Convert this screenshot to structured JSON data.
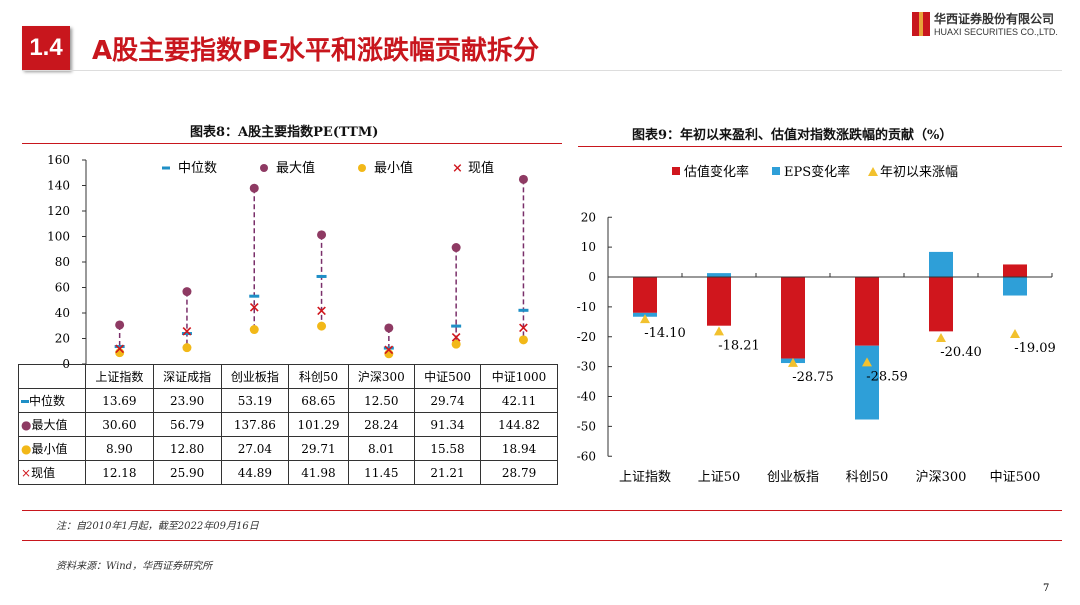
{
  "header": {
    "section": "1.4",
    "title": "A股主要指数PE水平和涨跌幅贡献拆分",
    "logo_cn": "华西证券股份有限公司",
    "logo_en": "HUAXI SECURITIES CO.,LTD."
  },
  "chart_data": [
    {
      "type": "scatter",
      "title": "图表8：A股主要指数PE(TTM)",
      "ylim": [
        0,
        160
      ],
      "yticks": [
        0,
        20,
        40,
        60,
        80,
        100,
        120,
        140,
        160
      ],
      "categories": [
        "上证指数",
        "深证成指",
        "创业板指",
        "科创50",
        "沪深300",
        "中证500",
        "中证1000"
      ],
      "series": [
        {
          "name": "中位数",
          "marker": "dash",
          "color": "#1f8fc6",
          "values": [
            13.69,
            23.9,
            53.19,
            68.65,
            12.5,
            29.74,
            42.11
          ]
        },
        {
          "name": "最大值",
          "marker": "circle",
          "color": "#8e3a63",
          "values": [
            30.6,
            56.79,
            137.86,
            101.29,
            28.24,
            91.34,
            144.82
          ]
        },
        {
          "name": "最小值",
          "marker": "circle",
          "color": "#f2b818",
          "values": [
            8.9,
            12.8,
            27.04,
            29.71,
            8.01,
            15.58,
            18.94
          ]
        },
        {
          "name": "现值",
          "marker": "x",
          "color": "#d0161d",
          "values": [
            12.18,
            25.9,
            44.89,
            41.98,
            11.45,
            21.21,
            28.79
          ]
        }
      ],
      "table_rows": [
        {
          "label": "中位数",
          "cells": [
            "13.69",
            "23.90",
            "53.19",
            "68.65",
            "12.50",
            "29.74",
            "42.11"
          ]
        },
        {
          "label": "最大值",
          "cells": [
            "30.60",
            "56.79",
            "137.86",
            "101.29",
            "28.24",
            "91.34",
            "144.82"
          ]
        },
        {
          "label": "最小值",
          "cells": [
            "8.90",
            "12.80",
            "27.04",
            "29.71",
            "8.01",
            "15.58",
            "18.94"
          ]
        },
        {
          "label": "现值",
          "cells": [
            "12.18",
            "25.90",
            "44.89",
            "41.98",
            "11.45",
            "21.21",
            "28.79"
          ]
        }
      ]
    },
    {
      "type": "bar",
      "title": "图表9：年初以来盈利、估值对指数涨跌幅的贡献（%）",
      "ylim": [
        -60,
        20
      ],
      "yticks": [
        20,
        10,
        0,
        -10,
        -20,
        -30,
        -40,
        -50,
        -60
      ],
      "categories": [
        "上证指数",
        "上证50",
        "创业板指",
        "科创50",
        "沪深300",
        "中证500"
      ],
      "series": [
        {
          "name": "估值变化率",
          "color": "#d0161d",
          "values": [
            -12.0,
            -16.3,
            -27.3,
            -23.0,
            -18.2,
            4.2
          ]
        },
        {
          "name": "EPS变化率",
          "color": "#2e9fd8",
          "values": [
            -1.3,
            1.3,
            -1.5,
            -24.7,
            8.4,
            -6.2
          ]
        },
        {
          "name": "年初以来涨幅",
          "color": "#f2c12e",
          "values": [
            -14.1,
            -18.21,
            -28.75,
            -28.59,
            -20.4,
            -19.09
          ]
        }
      ],
      "labels": [
        "-14.10",
        "-18.21",
        "-28.75",
        "-28.59",
        "-20.40",
        "-19.09"
      ]
    }
  ],
  "footer": {
    "note": "注：自2010年1月起，截至2022年09月16日",
    "source": "资料来源：Wind，华西证券研究所",
    "page": "7"
  }
}
